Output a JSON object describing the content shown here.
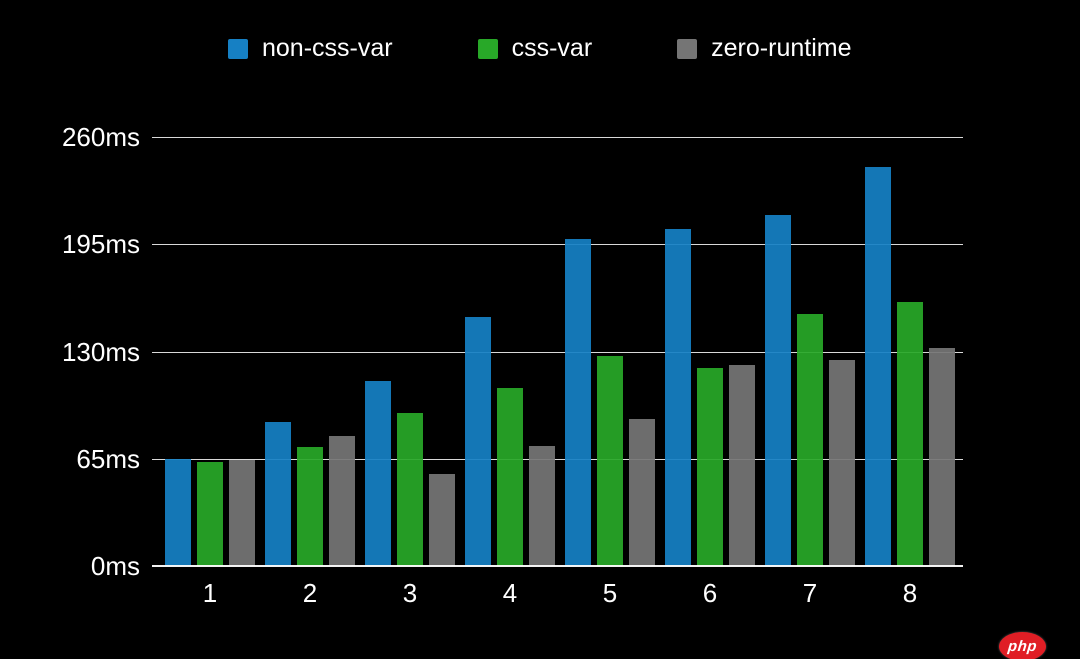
{
  "chart_data": {
    "type": "bar",
    "title": "",
    "categories": [
      "1",
      "2",
      "3",
      "4",
      "5",
      "6",
      "7",
      "8"
    ],
    "series": [
      {
        "name": "non-css-var",
        "color": "#1680c4",
        "values": [
          65,
          87,
          112,
          151,
          198,
          204,
          213,
          242
        ]
      },
      {
        "name": "css-var",
        "color": "#28a828",
        "values": [
          63,
          72,
          93,
          108,
          127,
          120,
          153,
          160
        ]
      },
      {
        "name": "zero-runtime",
        "color": "#757575",
        "values": [
          64,
          79,
          56,
          73,
          89,
          122,
          125,
          132
        ]
      }
    ],
    "yticks": [
      "260ms",
      "195ms",
      "130ms",
      "65ms",
      "0ms"
    ],
    "ylim": [
      0,
      260
    ],
    "unit": "ms",
    "grid": true,
    "legend_position": "top",
    "background": "#000000"
  },
  "watermark": {
    "text": "php"
  }
}
